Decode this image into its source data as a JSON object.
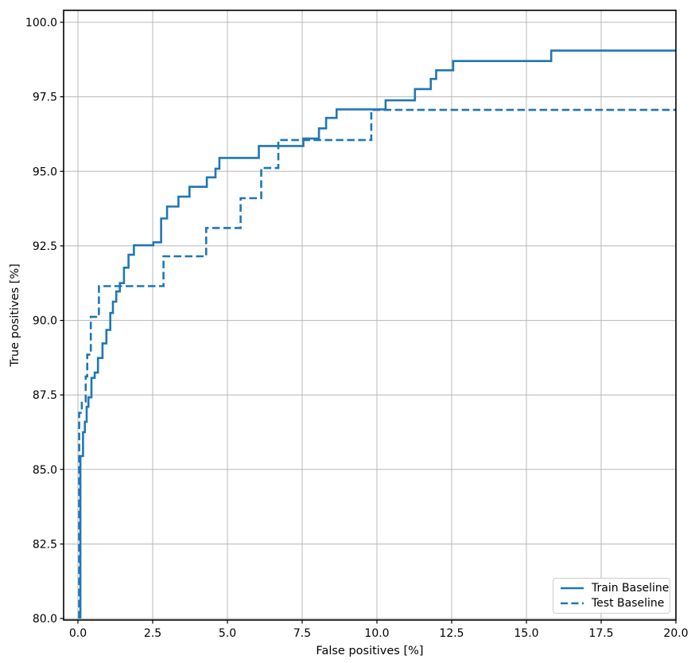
{
  "chart_data": {
    "type": "line",
    "subtype": "step-post-roc",
    "title": "",
    "xlabel": "False positives [%]",
    "ylabel": "True positives [%]",
    "xlim": [
      -0.48,
      20.0
    ],
    "ylim": [
      79.95,
      100.4
    ],
    "x_ticks": [
      0.0,
      2.5,
      5.0,
      7.5,
      10.0,
      12.5,
      15.0,
      17.5,
      20.0
    ],
    "x_tick_labels": [
      "0.0",
      "2.5",
      "5.0",
      "7.5",
      "10.0",
      "12.5",
      "15.0",
      "17.5",
      "20.0"
    ],
    "y_ticks": [
      80.0,
      82.5,
      85.0,
      87.5,
      90.0,
      92.5,
      95.0,
      97.5,
      100.0
    ],
    "y_tick_labels": [
      "80.0",
      "82.5",
      "85.0",
      "87.5",
      "90.0",
      "92.5",
      "95.0",
      "97.5",
      "100.0"
    ],
    "grid": true,
    "grid_color": "#b8b8b8",
    "spine_color": "#000000",
    "line_color": "#1f77b4",
    "legend": {
      "position": "lower right",
      "entries": [
        {
          "label": "Train Baseline",
          "style": "solid"
        },
        {
          "label": "Test Baseline",
          "style": "dashed"
        }
      ]
    },
    "series": [
      {
        "name": "Train Baseline",
        "style": "solid",
        "step": "post",
        "points": [
          [
            0.08,
            80.0
          ],
          [
            0.08,
            85.45
          ],
          [
            0.17,
            86.25
          ],
          [
            0.23,
            86.6
          ],
          [
            0.29,
            87.1
          ],
          [
            0.35,
            87.42
          ],
          [
            0.45,
            88.07
          ],
          [
            0.56,
            88.25
          ],
          [
            0.67,
            88.74
          ],
          [
            0.82,
            89.23
          ],
          [
            0.95,
            89.68
          ],
          [
            1.08,
            90.25
          ],
          [
            1.17,
            90.63
          ],
          [
            1.28,
            90.97
          ],
          [
            1.4,
            91.25
          ],
          [
            1.54,
            91.77
          ],
          [
            1.69,
            92.2
          ],
          [
            1.87,
            92.52
          ],
          [
            2.52,
            92.62
          ],
          [
            2.78,
            93.42
          ],
          [
            2.98,
            93.82
          ],
          [
            3.36,
            94.15
          ],
          [
            3.73,
            94.48
          ],
          [
            4.31,
            94.8
          ],
          [
            4.6,
            95.09
          ],
          [
            4.73,
            95.45
          ],
          [
            6.05,
            95.85
          ],
          [
            7.54,
            96.1
          ],
          [
            8.06,
            96.44
          ],
          [
            8.3,
            96.79
          ],
          [
            8.65,
            97.08
          ],
          [
            10.29,
            97.38
          ],
          [
            11.27,
            97.76
          ],
          [
            11.8,
            98.1
          ],
          [
            11.98,
            98.39
          ],
          [
            12.55,
            98.7
          ],
          [
            15.83,
            99.05
          ],
          [
            20.0,
            99.05
          ]
        ]
      },
      {
        "name": "Test Baseline",
        "style": "dashed",
        "step": "post",
        "points": [
          [
            0.04,
            80.0
          ],
          [
            0.04,
            86.9
          ],
          [
            0.13,
            87.28
          ],
          [
            0.26,
            88.12
          ],
          [
            0.31,
            88.85
          ],
          [
            0.43,
            90.12
          ],
          [
            0.7,
            91.15
          ],
          [
            2.86,
            92.15
          ],
          [
            4.29,
            93.1
          ],
          [
            5.44,
            94.1
          ],
          [
            6.13,
            95.11
          ],
          [
            6.7,
            96.05
          ],
          [
            9.81,
            97.06
          ],
          [
            20.0,
            97.06
          ]
        ]
      }
    ]
  }
}
